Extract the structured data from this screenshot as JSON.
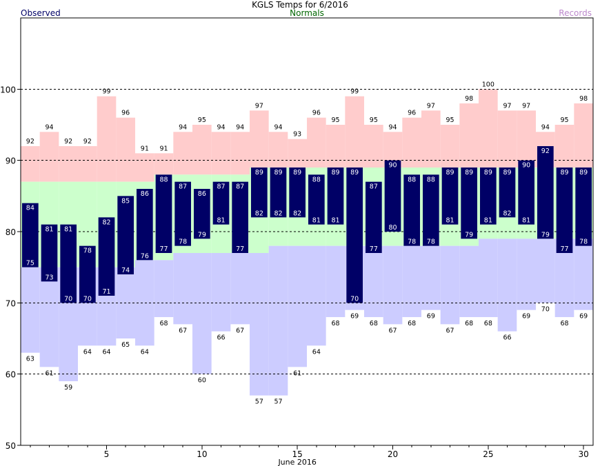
{
  "chart_data": {
    "type": "bar",
    "title": "KGLS Temps for 6/2016",
    "xlabel": "June 2016",
    "ylabel": "",
    "legend": [
      "Observed",
      "Normals",
      "Records"
    ],
    "ylim": [
      50,
      110
    ],
    "yticks": [
      50,
      60,
      70,
      80,
      90,
      100
    ],
    "xlim": [
      0.5,
      30.5
    ],
    "xticks": [
      5,
      10,
      15,
      20,
      25,
      30
    ],
    "grid": "dashed at 60, 70, 80, 90, 100",
    "days": [
      1,
      2,
      3,
      4,
      5,
      6,
      7,
      8,
      9,
      10,
      11,
      12,
      13,
      14,
      15,
      16,
      17,
      18,
      19,
      20,
      21,
      22,
      23,
      24,
      25,
      26,
      27,
      28,
      29,
      30
    ],
    "observed_high": [
      84,
      81,
      81,
      78,
      82,
      85,
      86,
      88,
      87,
      86,
      87,
      87,
      89,
      89,
      89,
      88,
      89,
      89,
      87,
      90,
      88,
      88,
      89,
      89,
      89,
      89,
      90,
      92,
      89,
      89
    ],
    "observed_low": [
      75,
      73,
      70,
      70,
      71,
      74,
      76,
      77,
      78,
      79,
      81,
      77,
      82,
      82,
      82,
      81,
      81,
      70,
      77,
      80,
      78,
      78,
      81,
      79,
      81,
      82,
      81,
      79,
      77,
      78
    ],
    "normal_high": [
      87,
      87,
      87,
      87,
      87,
      87,
      87,
      88,
      88,
      88,
      88,
      88,
      89,
      89,
      89,
      89,
      89,
      89,
      89,
      89,
      89,
      89,
      89,
      89,
      89,
      89,
      89,
      89,
      89,
      89
    ],
    "normal_low": [
      75,
      75,
      75,
      75,
      75,
      75,
      76,
      76,
      77,
      77,
      77,
      77,
      77,
      78,
      78,
      78,
      78,
      78,
      78,
      78,
      78,
      78,
      78,
      78,
      79,
      79,
      79,
      79,
      79,
      79
    ],
    "record_high": [
      92,
      94,
      92,
      92,
      99,
      96,
      91,
      91,
      94,
      95,
      94,
      94,
      97,
      94,
      93,
      96,
      95,
      99,
      95,
      94,
      96,
      97,
      95,
      98,
      100,
      97,
      97,
      94,
      95,
      98
    ],
    "record_low": [
      63,
      61,
      59,
      64,
      64,
      65,
      64,
      68,
      67,
      60,
      66,
      67,
      57,
      57,
      61,
      64,
      68,
      69,
      68,
      67,
      68,
      69,
      67,
      68,
      68,
      66,
      69,
      70,
      68,
      69
    ],
    "colors": {
      "observed": "#000066",
      "normal": "#ccffcc",
      "record_high": "#ffcccc",
      "record_low": "#ccccff",
      "observed_label": "#ffffff",
      "record_label": "#000000",
      "legend_observed": "#000066",
      "legend_normals": "#006600",
      "legend_records": "#bb88cc"
    }
  }
}
